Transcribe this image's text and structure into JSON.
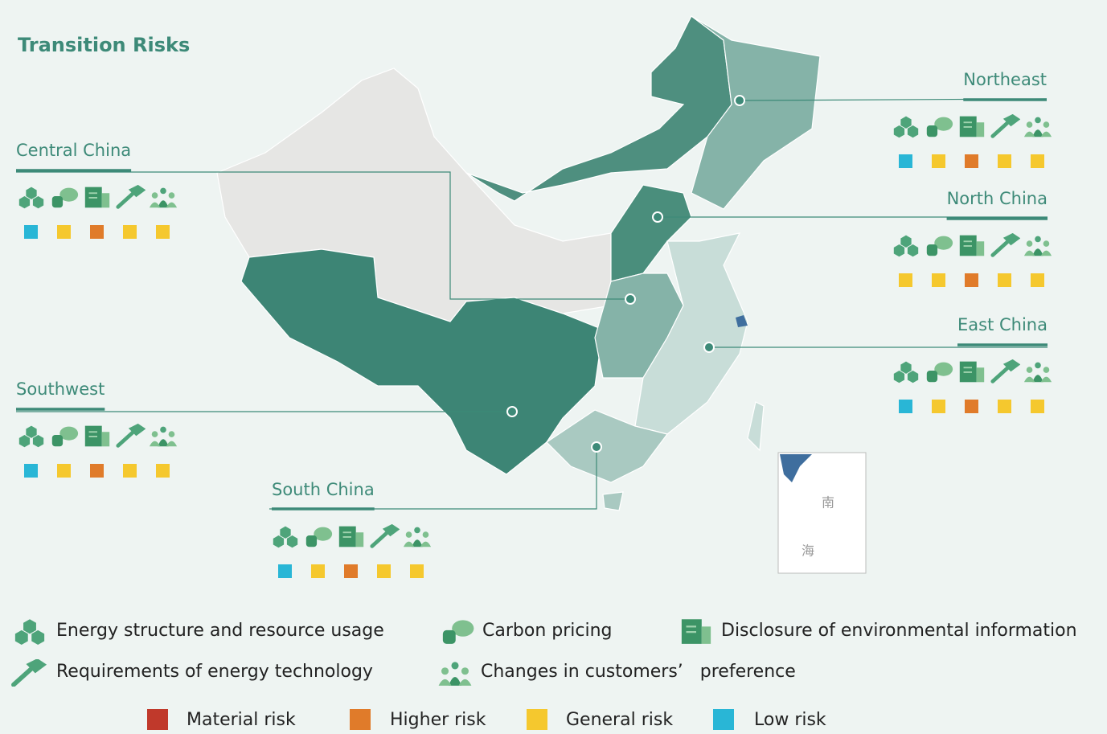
{
  "title": "Transition Risks",
  "regions": [
    {
      "name": "Northeast",
      "risks": [
        "#29b6d6",
        "#f5c82e",
        "#e07b2a",
        "#f5c82e",
        "#f5c82e"
      ]
    },
    {
      "name": "North China",
      "risks": [
        "#f5c82e",
        "#f5c82e",
        "#e07b2a",
        "#f5c82e",
        "#f5c82e"
      ]
    },
    {
      "name": "East China",
      "risks": [
        "#29b6d6",
        "#f5c82e",
        "#e07b2a",
        "#f5c82e",
        "#f5c82e"
      ]
    },
    {
      "name": "Central China",
      "risks": [
        "#29b6d6",
        "#f5c82e",
        "#e07b2a",
        "#f5c82e",
        "#f5c82e"
      ]
    },
    {
      "name": "Southwest",
      "risks": [
        "#29b6d6",
        "#f5c82e",
        "#e07b2a",
        "#f5c82e",
        "#f5c82e"
      ]
    },
    {
      "name": "South China",
      "risks": [
        "#29b6d6",
        "#f5c82e",
        "#e07b2a",
        "#f5c82e",
        "#f5c82e"
      ]
    }
  ],
  "risk_factors": [
    "Energy structure and resource usage",
    "Carbon pricing",
    "Disclosure of environmental information",
    "Requirements of energy technology",
    "Changes in customers’   preference"
  ],
  "risk_levels": [
    {
      "label": "Material risk",
      "color": "#c0392b"
    },
    {
      "label": "Higher risk",
      "color": "#e07b2a"
    },
    {
      "label": "General risk",
      "color": "#f5c82e"
    },
    {
      "label": "Low risk",
      "color": "#29b6d6"
    }
  ],
  "inset_labels": [
    "南",
    "海"
  ]
}
